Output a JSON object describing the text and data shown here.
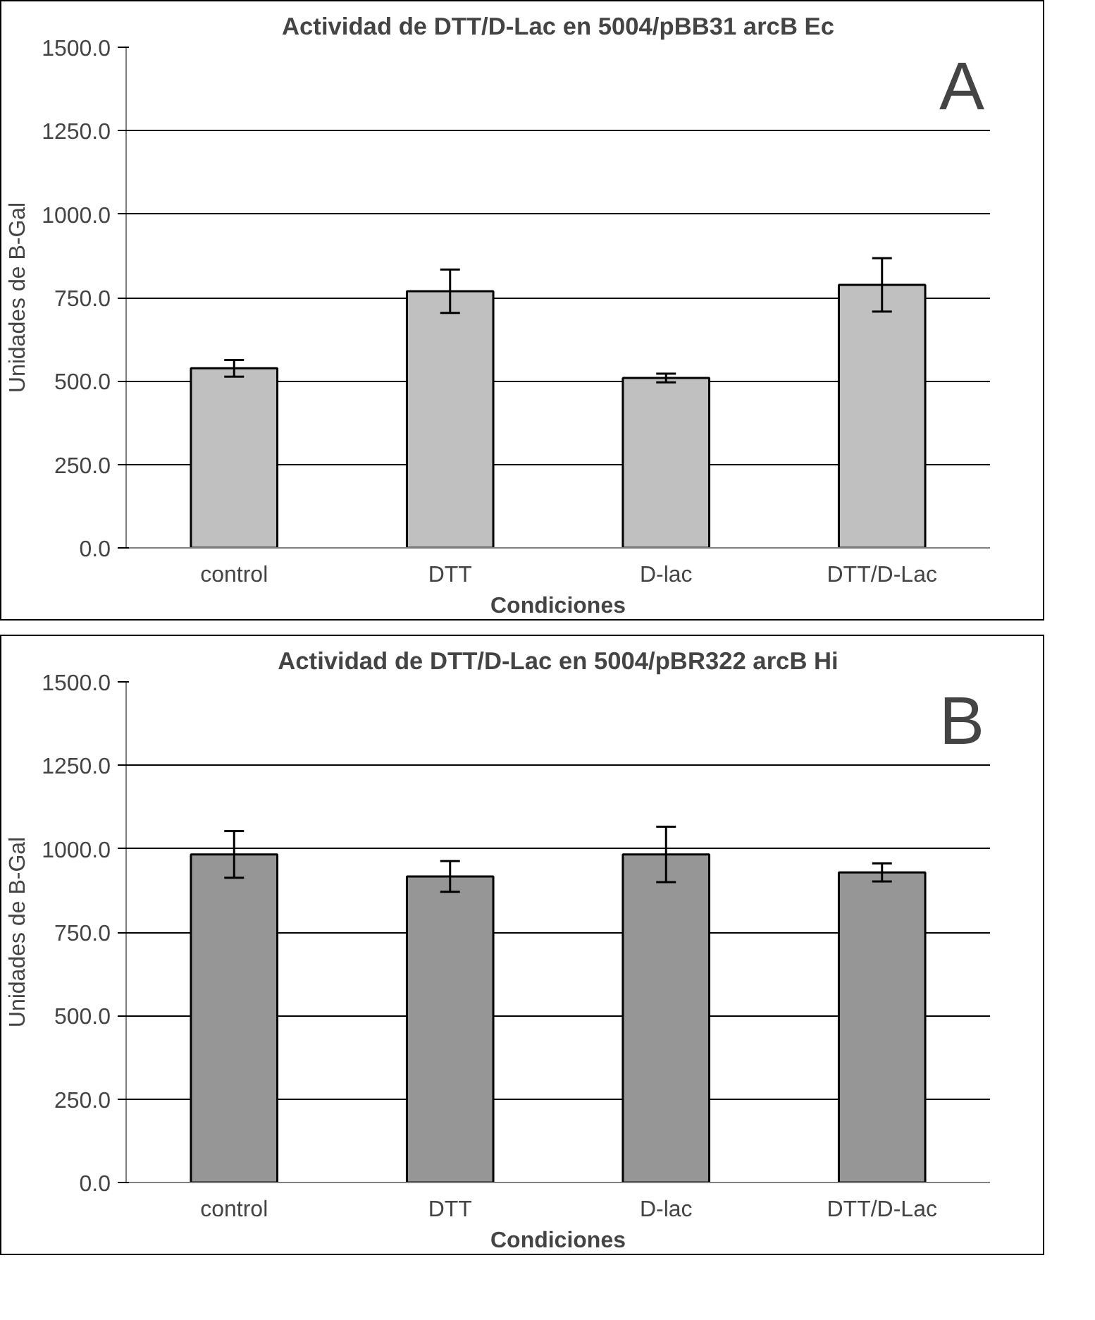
{
  "chart_data": [
    {
      "type": "bar",
      "title": "Actividad de DTT/D-Lac en 5004/pBB31 arcB Ec",
      "xlabel": "Condiciones",
      "ylabel": "Unidades de B-Gal",
      "categories": [
        "control",
        "DTT",
        "D-lac",
        "DTT/D-Lac"
      ],
      "values": [
        538,
        769,
        509,
        788
      ],
      "errors": [
        25,
        65,
        13,
        80
      ],
      "color": "#c0c0c0",
      "ylim": [
        0,
        1500
      ],
      "yticks": [
        {
          "value": 0,
          "label": "0.0"
        },
        {
          "value": 250,
          "label": "250.0"
        },
        {
          "value": 500,
          "label": "500.0"
        },
        {
          "value": 750,
          "label": "750.0"
        },
        {
          "value": 1000,
          "label": "1000.0"
        },
        {
          "value": 1250,
          "label": "1250.0"
        },
        {
          "value": 1500,
          "label": "1500.0"
        }
      ],
      "grid": "y",
      "annotations": [
        "A"
      ]
    },
    {
      "type": "bar",
      "title": "Actividad de DTT/D-Lac en 5004/pBR322 arcB Hi",
      "xlabel": "Condiciones",
      "ylabel": "Unidades de B-Gal",
      "categories": [
        "control",
        "DTT",
        "D-lac",
        "DTT/D-Lac"
      ],
      "values": [
        983,
        917,
        983,
        929
      ],
      "errors": [
        70,
        46,
        83,
        27
      ],
      "color": "#969696",
      "ylim": [
        0,
        1500
      ],
      "yticks": [
        {
          "value": 0,
          "label": "0.0"
        },
        {
          "value": 250,
          "label": "250.0"
        },
        {
          "value": 500,
          "label": "500.0"
        },
        {
          "value": 750,
          "label": "750.0"
        },
        {
          "value": 1000,
          "label": "1000.0"
        },
        {
          "value": 1250,
          "label": "1250.0"
        },
        {
          "value": 1500,
          "label": "1500.0"
        }
      ],
      "grid": "y",
      "annotations": [
        "B"
      ]
    }
  ]
}
